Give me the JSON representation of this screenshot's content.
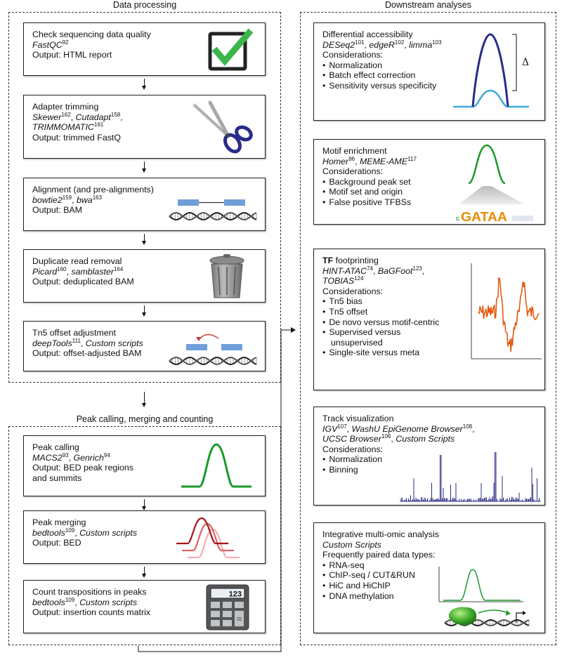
{
  "sections": {
    "data_processing": "Data processing",
    "peak_calling": "Peak calling, merging and counting",
    "downstream": "Downstream analyses"
  },
  "left_boxes": [
    {
      "title": "Check sequencing data quality",
      "tools": [
        {
          "name": "FastQC",
          "ref": "92"
        }
      ],
      "output": "Output: HTML report",
      "icon": "checkbox-check-icon"
    },
    {
      "title": "Adapter trimming",
      "tools": [
        {
          "name": "Skewer",
          "ref": "162"
        },
        {
          "name": "Cutadapt",
          "ref": "158"
        },
        {
          "name": "TRIMMOMATIC",
          "ref": "161"
        }
      ],
      "output": "Output: trimmed FastQ",
      "icon": "scissors-icon"
    },
    {
      "title": "Alignment (and pre-alignments)",
      "tools": [
        {
          "name": "bowtie2",
          "ref": "159"
        },
        {
          "name": "bwa",
          "ref": "163"
        }
      ],
      "output": "Output: BAM",
      "icon": "alignment-dna-icon"
    },
    {
      "title": "Duplicate read removal",
      "tools": [
        {
          "name": "Picard",
          "ref": "160"
        },
        {
          "name": "samblaster",
          "ref": "164"
        }
      ],
      "output": "Output: deduplicated BAM",
      "icon": "trash-can-icon"
    },
    {
      "title": "Tn5 offset adjustment",
      "tools": [
        {
          "name": "deepTools",
          "ref": "111"
        },
        {
          "name": "Custom scripts",
          "ref": ""
        }
      ],
      "output": "Output: offset-adjusted BAM",
      "icon": "offset-dna-icon"
    }
  ],
  "peak_boxes": [
    {
      "title": "Peak calling",
      "tools": [
        {
          "name": "MACS2",
          "ref": "93"
        },
        {
          "name": "Genrich",
          "ref": "94"
        }
      ],
      "output": "Output: BED peak regions",
      "output2": "and summits",
      "icon": "peak-curve-icon"
    },
    {
      "title": "Peak merging",
      "tools": [
        {
          "name": "bedtools",
          "ref": "109"
        },
        {
          "name": "Custom scripts",
          "ref": ""
        }
      ],
      "output": "Output: BED",
      "icon": "overlapping-peaks-icon"
    },
    {
      "title": "Count transpositions in peaks",
      "tools": [
        {
          "name": "bedtools",
          "ref": "109"
        },
        {
          "name": "Custom scripts",
          "ref": ""
        }
      ],
      "output": "Output: insertion counts matrix",
      "icon": "calculator-icon",
      "calc_display": "123"
    }
  ],
  "right_boxes": [
    {
      "title": "Differential accessibility",
      "tools": [
        {
          "name": "DESeq2",
          "ref": "101"
        },
        {
          "name": "edgeR",
          "ref": "102"
        },
        {
          "name": "limma",
          "ref": "103"
        }
      ],
      "considerations": "Considerations:",
      "items": [
        "Normalization",
        "Batch effect correction",
        "Sensitivity versus specificity"
      ],
      "delta": "Δ"
    },
    {
      "title": "Motif enrichment",
      "tools": [
        {
          "name": "Homer",
          "ref": "96"
        },
        {
          "name": "MEME-AME",
          "ref": "117"
        }
      ],
      "considerations": "Considerations:",
      "items": [
        "Background peak set",
        "Motif set and origin",
        "False positive TFBSs"
      ],
      "motif_letters": "GATAA"
    },
    {
      "title_bold": "TF",
      "title_rest": " footprinting",
      "tools": [
        {
          "name": "HINT-ATAC",
          "ref": "74"
        },
        {
          "name": "BaGFoot",
          "ref": "123"
        },
        {
          "name": "TOBIAS",
          "ref": "124"
        }
      ],
      "considerations": "Considerations:",
      "items": [
        "Tn5 bias",
        "Tn5 offset",
        "De novo versus motif-centric",
        "Supervised versus",
        "unsupervised",
        "Single-site versus meta"
      ]
    },
    {
      "title": "Track visualization",
      "tools": [
        {
          "name": "IGV",
          "ref": "107"
        },
        {
          "name": "WashU EpiGenome Browser",
          "ref": "108"
        },
        {
          "name": "UCSC Browser",
          "ref": "106"
        },
        {
          "name": "Custom Scripts",
          "ref": ""
        }
      ],
      "considerations": "Considerations:",
      "items": [
        "Normalization",
        "Binning"
      ]
    },
    {
      "title": "Integrative multi-omic analysis",
      "tools": [
        {
          "name": "Custom Scripts",
          "ref": ""
        }
      ],
      "considerations": "Frequently paired data types:",
      "items": [
        "RNA-seq",
        "ChIP-seq / CUT&RUN",
        "HiC and HiChIP",
        "DNA methylation"
      ]
    }
  ],
  "colors": {
    "green": "#1a9a2a",
    "check_green": "#3cb54a",
    "navy": "#2a2c8a",
    "light_blue": "#3fa9dc",
    "dark_red": "#a3141b",
    "orange": "#e35a12",
    "bar_blue": "#6f9fd8",
    "track_navy": "#2b2a86"
  }
}
